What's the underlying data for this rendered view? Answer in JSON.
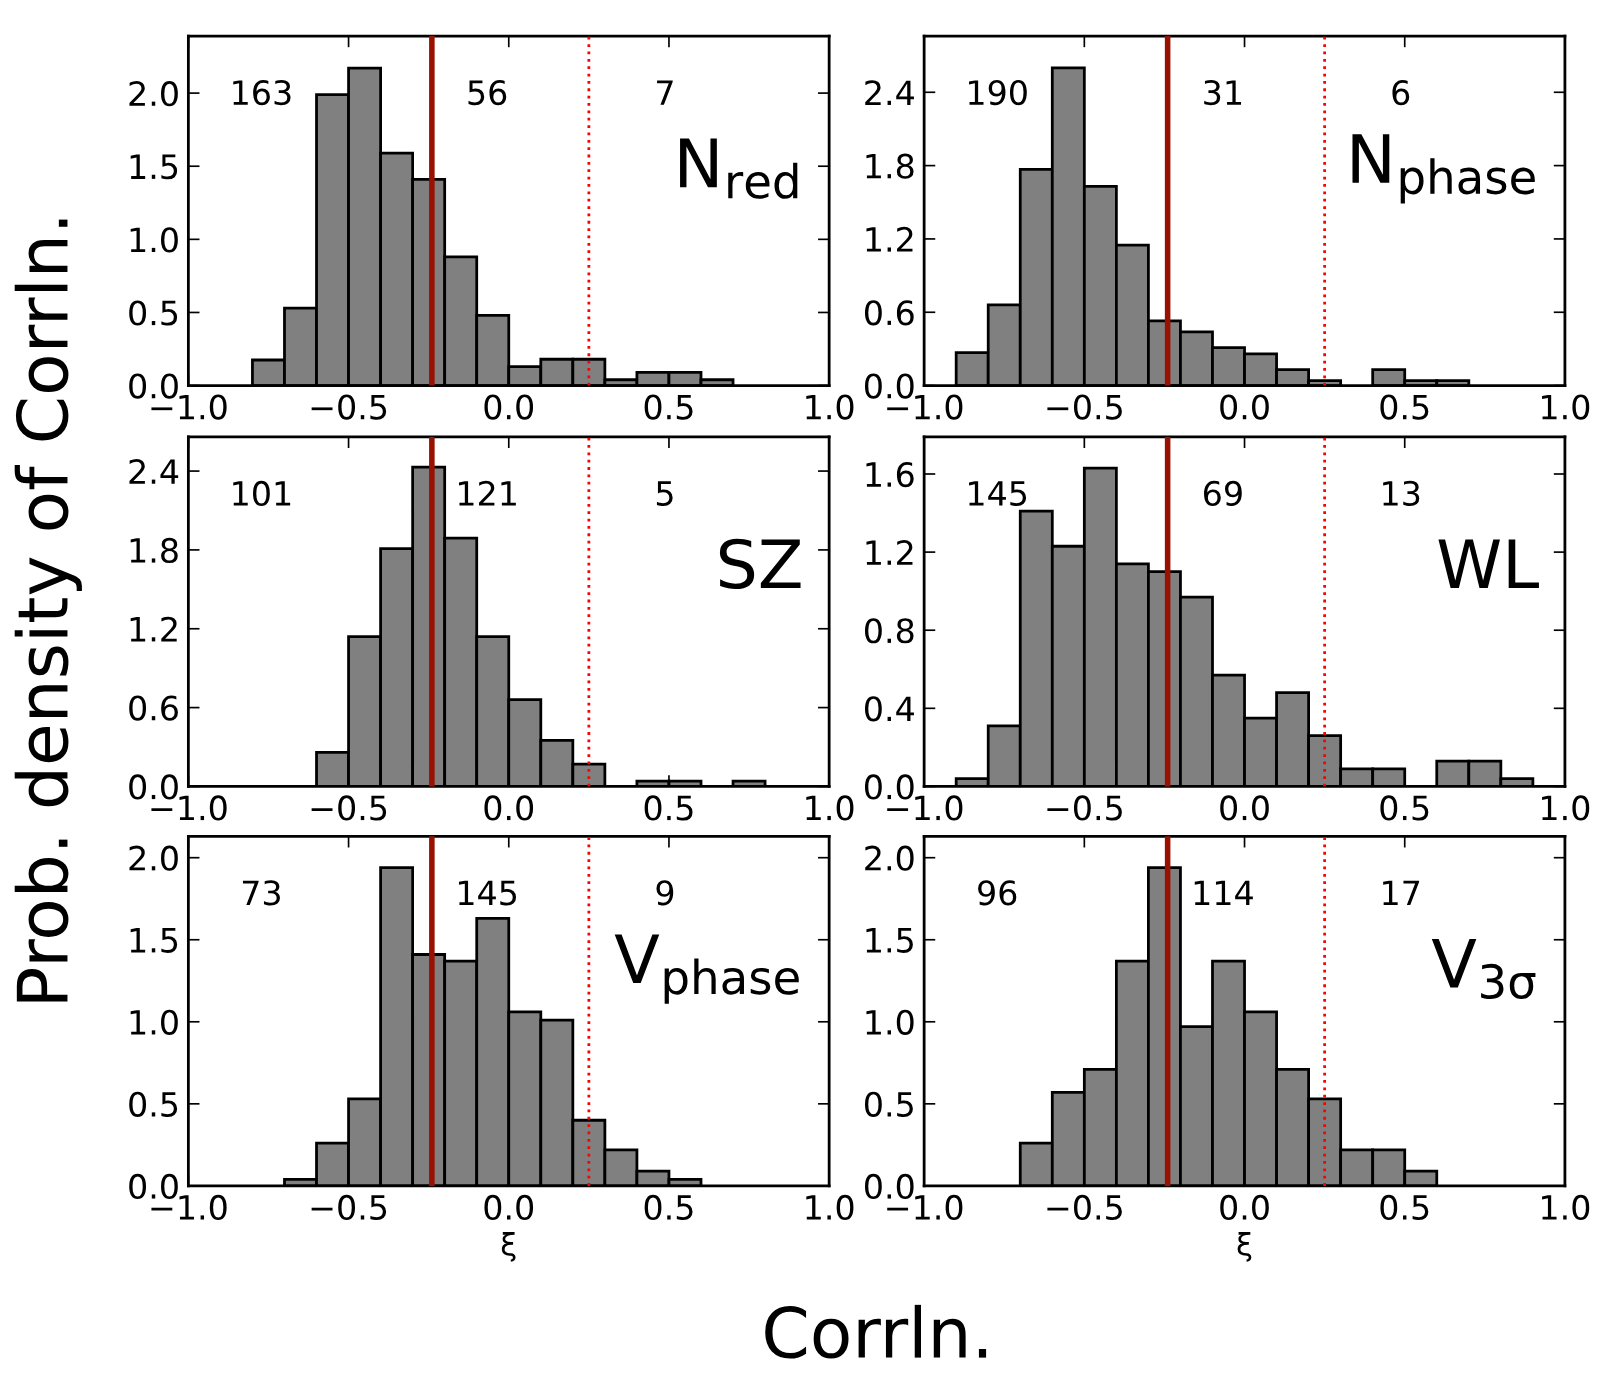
{
  "chart_data": [
    {
      "type": "histogram",
      "title": "N$_{red}$",
      "ylabel": "Prob. density of Corrln.",
      "bins": [
        -0.8,
        -0.7,
        -0.6,
        -0.5,
        -0.4,
        -0.3,
        -0.2,
        -0.1,
        0.0,
        0.1,
        0.2,
        0.3,
        0.4,
        0.5,
        0.6,
        0.7
      ],
      "values": [
        0.175,
        0.53,
        1.99,
        2.17,
        1.59,
        1.41,
        0.88,
        0.48,
        0.13,
        0.18,
        0.18,
        0.04,
        0.09,
        0.09,
        0.04
      ],
      "color": "#808080",
      "xlim": [
        -1.0,
        1.0
      ],
      "xticks": [
        {
          "value": -1.0,
          "label": "−1.0"
        },
        {
          "value": -0.5,
          "label": "−0.5"
        },
        {
          "value": 0.0,
          "label": "0.0"
        },
        {
          "value": 0.5,
          "label": "0.5"
        },
        {
          "value": 1.0,
          "label": "1.0"
        }
      ],
      "ylim": [
        0,
        2.39
      ],
      "yticks": [
        {
          "value": 0,
          "label": "0.0"
        },
        {
          "value": 0.5,
          "label": "0.5"
        },
        {
          "value": 1.0,
          "label": "1.0"
        },
        {
          "value": 1.5,
          "label": "1.5"
        },
        {
          "value": 2.0,
          "label": "2.0"
        }
      ],
      "ref_lines": [
        {
          "axis": "x",
          "value": -0.24,
          "color": "#991100",
          "line_style": "solid"
        },
        {
          "axis": "x",
          "value": 0.25,
          "color": "#ff0000",
          "line_style": "dotted"
        }
      ],
      "annotations": [
        "163",
        "56",
        "7"
      ]
    },
    {
      "type": "histogram",
      "title": "N$_{phase}$",
      "bins": [
        -0.9,
        -0.8,
        -0.7,
        -0.6,
        -0.5,
        -0.4,
        -0.3,
        -0.2,
        -0.1,
        0.0,
        0.1,
        0.2,
        0.3,
        0.4,
        0.5,
        0.6,
        0.7
      ],
      "values": [
        0.27,
        0.66,
        1.77,
        2.6,
        1.63,
        1.15,
        0.53,
        0.44,
        0.31,
        0.26,
        0.13,
        0.04,
        null,
        0.13,
        0.04,
        0.04
      ],
      "color": "#808080",
      "xlim": [
        -1.0,
        1.0
      ],
      "xticks": [
        {
          "value": -1.0,
          "label": "−1.0"
        },
        {
          "value": -0.5,
          "label": "−0.5"
        },
        {
          "value": 0.0,
          "label": "0.0"
        },
        {
          "value": 0.5,
          "label": "0.5"
        },
        {
          "value": 1.0,
          "label": "1.0"
        }
      ],
      "ylim": [
        0,
        2.86
      ],
      "yticks": [
        {
          "value": 0,
          "label": "0.0"
        },
        {
          "value": 0.6,
          "label": "0.6"
        },
        {
          "value": 1.2,
          "label": "1.2"
        },
        {
          "value": 1.8,
          "label": "1.8"
        },
        {
          "value": 2.4,
          "label": "2.4"
        }
      ],
      "ref_lines": [
        {
          "axis": "x",
          "value": -0.24,
          "color": "#991100",
          "line_style": "solid"
        },
        {
          "axis": "x",
          "value": 0.25,
          "color": "#ff0000",
          "line_style": "dotted"
        }
      ],
      "annotations": [
        "190",
        "31",
        "6"
      ]
    },
    {
      "type": "histogram",
      "title": "SZ",
      "bins": [
        -0.6,
        -0.5,
        -0.4,
        -0.3,
        -0.2,
        -0.1,
        0.0,
        0.1,
        0.2,
        0.3,
        0.4,
        0.5,
        0.6,
        0.7,
        0.8
      ],
      "values": [
        0.26,
        1.14,
        1.81,
        2.43,
        1.89,
        1.14,
        0.66,
        0.35,
        0.17,
        null,
        0.04,
        0.04,
        null,
        0.04
      ],
      "color": "#808080",
      "xlim": [
        -1.0,
        1.0
      ],
      "xticks": [
        {
          "value": -1.0,
          "label": "−1.0"
        },
        {
          "value": -0.5,
          "label": "−0.5"
        },
        {
          "value": 0.0,
          "label": "0.0"
        },
        {
          "value": 0.5,
          "label": "0.5"
        },
        {
          "value": 1.0,
          "label": "1.0"
        }
      ],
      "ylim": [
        0,
        2.66
      ],
      "yticks": [
        {
          "value": 0,
          "label": "0.0"
        },
        {
          "value": 0.6,
          "label": "0.6"
        },
        {
          "value": 1.2,
          "label": "1.2"
        },
        {
          "value": 1.8,
          "label": "1.8"
        },
        {
          "value": 2.4,
          "label": "2.4"
        }
      ],
      "ref_lines": [
        {
          "axis": "x",
          "value": -0.24,
          "color": "#991100",
          "line_style": "solid"
        },
        {
          "axis": "x",
          "value": 0.25,
          "color": "#ff0000",
          "line_style": "dotted"
        }
      ],
      "annotations": [
        "101",
        "121",
        "5"
      ]
    },
    {
      "type": "histogram",
      "title": "WL",
      "bins": [
        -0.9,
        -0.8,
        -0.7,
        -0.6,
        -0.5,
        -0.4,
        -0.3,
        -0.2,
        -0.1,
        0.0,
        0.1,
        0.2,
        0.3,
        0.4,
        0.5,
        0.6,
        0.7,
        0.8,
        0.9
      ],
      "values": [
        0.04,
        0.31,
        1.41,
        1.23,
        1.63,
        1.14,
        1.1,
        0.97,
        0.57,
        0.35,
        0.48,
        0.26,
        0.09,
        0.09,
        null,
        0.13,
        0.13,
        0.04
      ],
      "color": "#808080",
      "xlim": [
        -1.0,
        1.0
      ],
      "xticks": [
        {
          "value": -1.0,
          "label": "−1.0"
        },
        {
          "value": -0.5,
          "label": "−0.5"
        },
        {
          "value": 0.0,
          "label": "0.0"
        },
        {
          "value": 0.5,
          "label": "0.5"
        },
        {
          "value": 1.0,
          "label": "1.0"
        }
      ],
      "ylim": [
        0,
        1.79
      ],
      "yticks": [
        {
          "value": 0,
          "label": "0.0"
        },
        {
          "value": 0.4,
          "label": "0.4"
        },
        {
          "value": 0.8,
          "label": "0.8"
        },
        {
          "value": 1.2,
          "label": "1.2"
        },
        {
          "value": 1.6,
          "label": "1.6"
        }
      ],
      "ref_lines": [
        {
          "axis": "x",
          "value": -0.24,
          "color": "#991100",
          "line_style": "solid"
        },
        {
          "axis": "x",
          "value": 0.25,
          "color": "#ff0000",
          "line_style": "dotted"
        }
      ],
      "annotations": [
        "145",
        "69",
        "13"
      ]
    },
    {
      "type": "histogram",
      "title": "V$_{phase}$",
      "xlabel": "ξ",
      "bins": [
        -0.7,
        -0.6,
        -0.5,
        -0.4,
        -0.3,
        -0.2,
        -0.1,
        0.0,
        0.1,
        0.2,
        0.3,
        0.4,
        0.5,
        0.6
      ],
      "values": [
        0.04,
        0.26,
        0.53,
        1.94,
        1.41,
        1.37,
        1.63,
        1.06,
        1.01,
        0.4,
        0.22,
        0.09,
        0.04
      ],
      "color": "#808080",
      "xlim": [
        -1.0,
        1.0
      ],
      "xticks": [
        {
          "value": -1.0,
          "label": "−1.0"
        },
        {
          "value": -0.5,
          "label": "−0.5"
        },
        {
          "value": 0.0,
          "label": "0.0"
        },
        {
          "value": 0.5,
          "label": "0.5"
        },
        {
          "value": 1.0,
          "label": "1.0"
        }
      ],
      "ylim": [
        0,
        2.13
      ],
      "yticks": [
        {
          "value": 0,
          "label": "0.0"
        },
        {
          "value": 0.5,
          "label": "0.5"
        },
        {
          "value": 1.0,
          "label": "1.0"
        },
        {
          "value": 1.5,
          "label": "1.5"
        },
        {
          "value": 2.0,
          "label": "2.0"
        }
      ],
      "ref_lines": [
        {
          "axis": "x",
          "value": -0.24,
          "color": "#991100",
          "line_style": "solid"
        },
        {
          "axis": "x",
          "value": 0.25,
          "color": "#ff0000",
          "line_style": "dotted"
        }
      ],
      "annotations": [
        "73",
        "145",
        "9",
        "Corrln."
      ]
    },
    {
      "type": "histogram",
      "title": "V$_{3σ}$",
      "xlabel": "ξ",
      "bins": [
        -0.7,
        -0.6,
        -0.5,
        -0.4,
        -0.3,
        -0.2,
        -0.1,
        0.0,
        0.1,
        0.2,
        0.3,
        0.4,
        0.5,
        0.6
      ],
      "values": [
        0.26,
        0.57,
        0.71,
        1.37,
        1.94,
        0.97,
        1.37,
        1.06,
        0.71,
        0.53,
        0.22,
        0.22,
        0.09
      ],
      "color": "#808080",
      "xlim": [
        -1.0,
        1.0
      ],
      "xticks": [
        {
          "value": -1.0,
          "label": "−1.0"
        },
        {
          "value": -0.5,
          "label": "−0.5"
        },
        {
          "value": 0.0,
          "label": "0.0"
        },
        {
          "value": 0.5,
          "label": "0.5"
        },
        {
          "value": 1.0,
          "label": "1.0"
        }
      ],
      "ylim": [
        0,
        2.13
      ],
      "yticks": [
        {
          "value": 0,
          "label": "0.0"
        },
        {
          "value": 0.5,
          "label": "0.5"
        },
        {
          "value": 1.0,
          "label": "1.0"
        },
        {
          "value": 1.5,
          "label": "1.5"
        },
        {
          "value": 2.0,
          "label": "2.0"
        }
      ],
      "ref_lines": [
        {
          "axis": "x",
          "value": -0.24,
          "color": "#991100",
          "line_style": "solid"
        },
        {
          "axis": "x",
          "value": 0.25,
          "color": "#ff0000",
          "line_style": "dotted"
        }
      ],
      "annotations": [
        "96",
        "114",
        "17"
      ]
    }
  ]
}
